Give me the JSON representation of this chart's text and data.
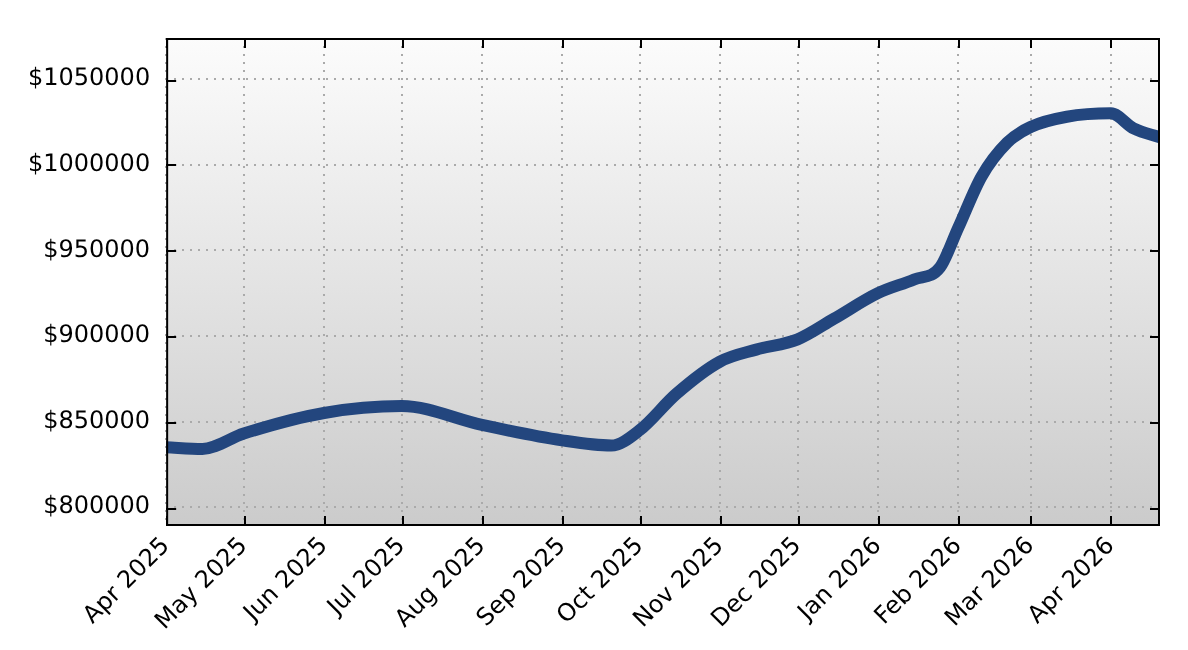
{
  "chart_data": {
    "type": "line",
    "x": [
      "2025-04-01",
      "2025-04-15",
      "2025-05-01",
      "2025-06-01",
      "2025-07-01",
      "2025-08-01",
      "2025-09-01",
      "2025-09-20",
      "2025-10-01",
      "2025-10-15",
      "2025-11-01",
      "2025-11-15",
      "2025-12-01",
      "2025-12-15",
      "2026-01-01",
      "2026-01-15",
      "2026-01-25",
      "2026-02-01",
      "2026-02-10",
      "2026-02-20",
      "2026-03-01",
      "2026-03-15",
      "2026-04-01",
      "2026-04-10",
      "2026-04-20"
    ],
    "series": [
      {
        "color": "#23467e",
        "values": [
          835000,
          834000,
          843000,
          855000,
          859000,
          848000,
          839000,
          836000,
          845000,
          866000,
          885000,
          892000,
          898000,
          910000,
          925000,
          933000,
          940000,
          963000,
          993000,
          1013000,
          1022000,
          1028000,
          1030000,
          1021000,
          1016000
        ]
      }
    ],
    "xlim": [
      "2025-04-01",
      "2026-04-20"
    ],
    "xticks": [
      {
        "value": "2025-04-01",
        "label": "Apr 2025"
      },
      {
        "value": "2025-05-01",
        "label": "May 2025"
      },
      {
        "value": "2025-06-01",
        "label": "Jun 2025"
      },
      {
        "value": "2025-07-01",
        "label": "Jul 2025"
      },
      {
        "value": "2025-08-01",
        "label": "Aug 2025"
      },
      {
        "value": "2025-09-01",
        "label": "Sep 2025"
      },
      {
        "value": "2025-10-01",
        "label": "Oct 2025"
      },
      {
        "value": "2025-11-01",
        "label": "Nov 2025"
      },
      {
        "value": "2025-12-01",
        "label": "Dec 2025"
      },
      {
        "value": "2026-01-01",
        "label": "Jan 2026"
      },
      {
        "value": "2026-02-01",
        "label": "Feb 2026"
      },
      {
        "value": "2026-03-01",
        "label": "Mar 2026"
      },
      {
        "value": "2026-04-01",
        "label": "Apr 2026"
      }
    ],
    "ylim": [
      789000,
      1074000
    ],
    "yticks": [
      {
        "value": 800000,
        "label": "$800000"
      },
      {
        "value": 850000,
        "label": "$850000"
      },
      {
        "value": 900000,
        "label": "$900000"
      },
      {
        "value": 950000,
        "label": "$950000"
      },
      {
        "value": 1000000,
        "label": "$1000000"
      },
      {
        "value": 1050000,
        "label": "$1050000"
      }
    ],
    "grid": true,
    "legend": false,
    "marker": "none",
    "line_style": "solid"
  }
}
